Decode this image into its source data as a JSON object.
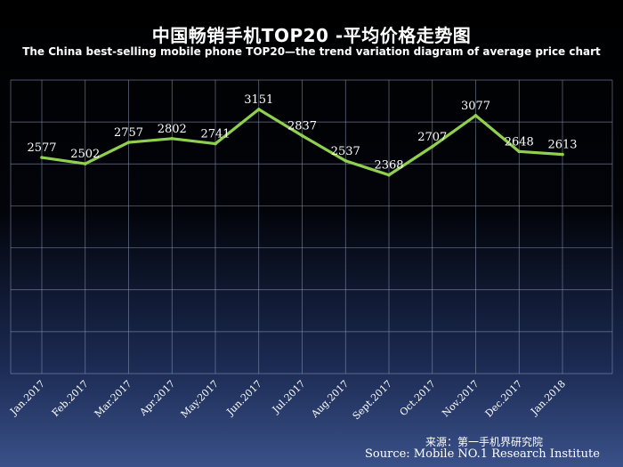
{
  "chart_data": {
    "type": "line",
    "title": "中国畅销手机TOP20 -平均价格走势图",
    "subtitle": "The China best-selling mobile phone TOP20—the trend variation diagram of average price chart",
    "categories": [
      "Jan.2017",
      "Feb.2017",
      "Mar.2017",
      "Apr.2017",
      "May.2017",
      "Jun.2017",
      "Jul.2017",
      "Aug.2017",
      "Sept.2017",
      "Oct.2017",
      "Nov.2017",
      "Dec.2017",
      "Jan.2018"
    ],
    "series": [
      {
        "values": [
          2577,
          2502,
          2757,
          2802,
          2741,
          3151,
          2837,
          2537,
          2368,
          2707,
          3077,
          2648,
          2613
        ]
      }
    ],
    "ylim": [
      0,
      3500
    ],
    "grid": true,
    "colors": {
      "line": "#8fd14f",
      "grid": "#8a96b4",
      "text": "#ffffff"
    }
  },
  "source": {
    "line1": "来源：第一手机界研究院",
    "line2": "Source: Mobile NO.1 Research Institute"
  }
}
